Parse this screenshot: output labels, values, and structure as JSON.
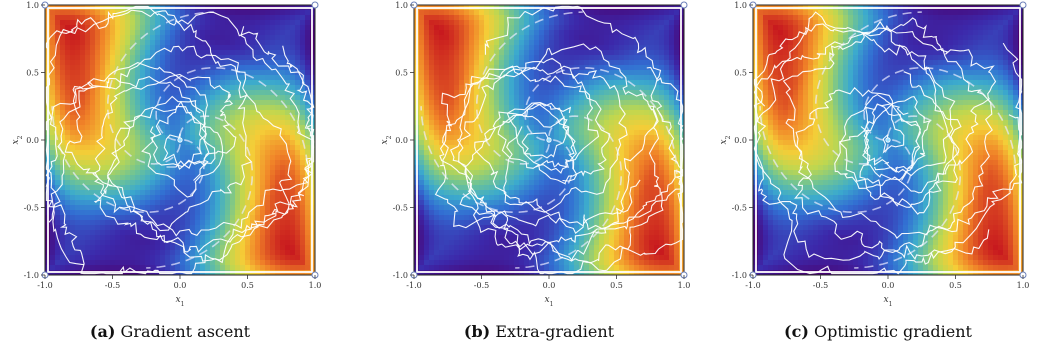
{
  "chart_data": [
    {
      "type": "contour",
      "panel_label": "(a)",
      "caption": "Gradient ascent",
      "xlabel": "x",
      "xlabel_sub": "1",
      "ylabel": "x",
      "ylabel_sub": "2",
      "xlim": [
        -1.0,
        1.0
      ],
      "ylim": [
        -1.0,
        1.0
      ],
      "xticks": [
        -1.0,
        -0.5,
        0.0,
        0.5,
        1.0
      ],
      "yticks": [
        -1.0,
        -0.5,
        0.0,
        0.5,
        1.0
      ],
      "xticklabels": [
        "-1.0",
        "-0.5",
        "0.0",
        "0.5",
        "1.0"
      ],
      "yticklabels": [
        "-1.0",
        "-0.5",
        "0.0",
        "0.5",
        "1.0"
      ],
      "colormap": "rainbow",
      "trajectory_color": "#ffffff",
      "trajectory_seed": 11
    },
    {
      "type": "contour",
      "panel_label": "(b)",
      "caption": "Extra-gradient",
      "xlabel": "x",
      "xlabel_sub": "1",
      "ylabel": "x",
      "ylabel_sub": "2",
      "xlim": [
        -1.0,
        1.0
      ],
      "ylim": [
        -1.0,
        1.0
      ],
      "xticks": [
        -1.0,
        -0.5,
        0.0,
        0.5,
        1.0
      ],
      "yticks": [
        -1.0,
        -0.5,
        0.0,
        0.5,
        1.0
      ],
      "xticklabels": [
        "-1.0",
        "-0.5",
        "0.0",
        "0.5",
        "1.0"
      ],
      "yticklabels": [
        "-1.0",
        "-0.5",
        "0.0",
        "0.5",
        "1.0"
      ],
      "colormap": "rainbow",
      "trajectory_color": "#ffffff",
      "trajectory_seed": 29
    },
    {
      "type": "contour",
      "panel_label": "(c)",
      "caption": "Optimistic gradient",
      "xlabel": "x",
      "xlabel_sub": "1",
      "ylabel": "x",
      "ylabel_sub": "2",
      "xlim": [
        -1.0,
        1.0
      ],
      "ylim": [
        -1.0,
        1.0
      ],
      "xticks": [
        -1.0,
        -0.5,
        0.0,
        0.5,
        1.0
      ],
      "yticks": [
        -1.0,
        -0.5,
        0.0,
        0.5,
        1.0
      ],
      "xticklabels": [
        "-1.0",
        "-0.5",
        "0.0",
        "0.5",
        "1.0"
      ],
      "yticklabels": [
        "-1.0",
        "-0.5",
        "0.0",
        "0.5",
        "1.0"
      ],
      "colormap": "rainbow",
      "trajectory_color": "#ffffff",
      "trajectory_seed": 47
    }
  ]
}
